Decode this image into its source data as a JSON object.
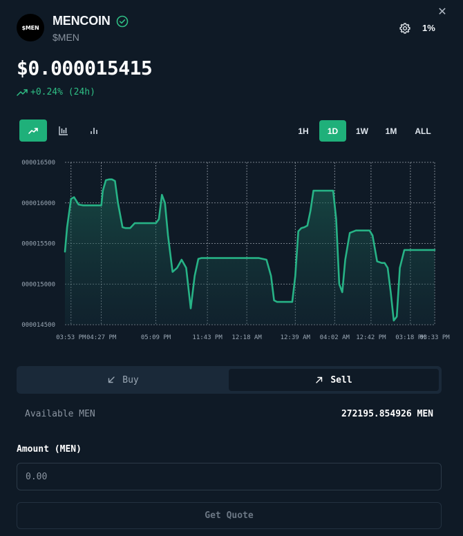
{
  "token": {
    "name": "MENCOIN",
    "symbol": "$MEN",
    "logo_text": "$MEN",
    "verified_icon": "check-circle-icon"
  },
  "header": {
    "settings_icon": "gear-icon",
    "slippage": "1%",
    "close_icon": "close-icon"
  },
  "price": {
    "value": "$0.000015415",
    "change": "+0.24% (24h)",
    "change_color": "#2fbf85"
  },
  "chart_types": [
    {
      "name": "line",
      "icon": "trend-line-icon",
      "active": true
    },
    {
      "name": "candles",
      "icon": "candlestick-icon",
      "active": false
    },
    {
      "name": "bars",
      "icon": "bar-chart-icon",
      "active": false
    }
  ],
  "timeframes": [
    {
      "label": "1H",
      "active": false
    },
    {
      "label": "1D",
      "active": true
    },
    {
      "label": "1W",
      "active": false
    },
    {
      "label": "1M",
      "active": false
    },
    {
      "label": "ALL",
      "active": false
    }
  ],
  "chart_data": {
    "type": "area",
    "title": "",
    "xlabel": "",
    "ylabel": "",
    "ylim": [
      14500,
      16500
    ],
    "y_ticks": [
      "000016500",
      "000016000",
      "000015500",
      "000015000",
      "000014500"
    ],
    "y_tick_values": [
      16500,
      16000,
      15500,
      15000,
      14500
    ],
    "x_ticks": [
      "03:53 PM",
      "04:27 PM",
      "05:09 PM",
      "11:43 PM",
      "12:18 AM",
      "12:39 AM",
      "04:02 AM",
      "12:42 PM",
      "03:18 PM",
      "03:33 PM"
    ],
    "x_tick_positions": [
      0.2,
      1.2,
      3,
      4.7,
      6,
      7.6,
      8.9,
      10.1,
      11.4,
      12.2
    ],
    "x_range": [
      0,
      12.2
    ],
    "grid": true,
    "line_color": "#27b386",
    "series": [
      {
        "x": [
          0,
          0.07,
          0.2,
          0.3,
          0.45,
          0.6,
          0.8,
          1.0,
          1.2,
          1.25,
          1.35,
          1.45,
          1.55,
          1.65,
          1.75,
          1.9,
          2.0,
          2.15,
          2.3,
          2.5,
          2.7,
          2.85,
          3.0,
          3.1,
          3.2,
          3.3,
          3.4,
          3.55,
          3.7,
          3.85,
          4.0,
          4.15,
          4.28,
          4.4,
          4.5,
          4.7,
          4.85,
          5.0,
          5.2,
          5.5,
          5.8,
          6.1,
          6.4,
          6.65,
          6.8,
          6.9,
          7.0,
          7.2,
          7.4,
          7.5,
          7.6,
          7.7,
          7.8,
          7.9,
          8.0,
          8.1,
          8.2,
          8.3,
          8.5,
          8.7,
          8.85,
          8.95,
          9.05,
          9.15,
          9.25,
          9.4,
          9.6,
          9.8,
          9.95,
          10.05,
          10.15,
          10.3,
          10.45,
          10.55,
          10.65,
          10.75,
          10.85,
          10.95,
          11.05,
          11.2,
          11.35,
          11.55,
          11.8,
          12.0,
          12.2
        ],
        "y": [
          15400,
          15700,
          16050,
          16070,
          15980,
          15970,
          15970,
          15970,
          15970,
          16150,
          16280,
          16290,
          16290,
          16270,
          16000,
          15700,
          15690,
          15690,
          15750,
          15750,
          15750,
          15750,
          15750,
          15800,
          16100,
          16000,
          15600,
          15150,
          15200,
          15300,
          15200,
          14700,
          15100,
          15310,
          15320,
          15320,
          15320,
          15320,
          15320,
          15320,
          15320,
          15320,
          15320,
          15300,
          15100,
          14800,
          14780,
          14780,
          14780,
          14780,
          15100,
          15650,
          15690,
          15700,
          15720,
          15900,
          16150,
          16150,
          16150,
          16150,
          16150,
          15800,
          15000,
          14900,
          15300,
          15630,
          15660,
          15660,
          15660,
          15660,
          15600,
          15280,
          15260,
          15260,
          15200,
          14900,
          14550,
          14600,
          15200,
          15420,
          15420,
          15420,
          15420,
          15420,
          15420
        ]
      }
    ]
  },
  "trade_tabs": {
    "buy": {
      "label": "Buy",
      "icon": "arrow-down-left-icon",
      "active": false
    },
    "sell": {
      "label": "Sell",
      "icon": "arrow-up-right-icon",
      "active": true
    }
  },
  "available": {
    "label": "Available MEN",
    "value": "272195.854926 MEN"
  },
  "amount": {
    "label": "Amount (MEN)",
    "placeholder": "0.00",
    "value": ""
  },
  "quote_button": {
    "label": "Get Quote"
  }
}
